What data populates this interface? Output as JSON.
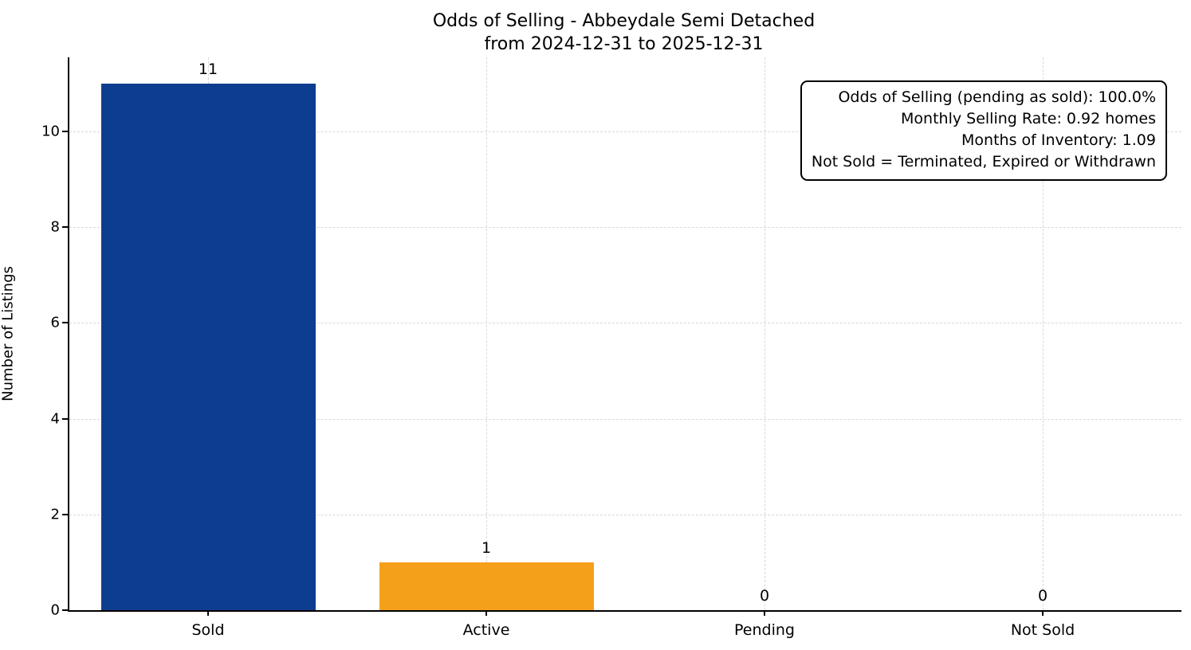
{
  "title": {
    "line1": "Odds of Selling - Abbeydale Semi Detached",
    "line2": "from 2024-12-31 to 2025-12-31"
  },
  "chart_data": {
    "type": "bar",
    "title": "Odds of Selling - Abbeydale Semi Detached\nfrom 2024-12-31 to 2025-12-31",
    "categories": [
      "Sold",
      "Active",
      "Pending",
      "Not Sold"
    ],
    "values": [
      11,
      1,
      0,
      0
    ],
    "value_labels": [
      "11",
      "1",
      "0",
      "0"
    ],
    "bar_colors": [
      "#0d3d8f",
      "#f5a01b",
      "#0d3d8f",
      "#0d3d8f"
    ],
    "xlabel": "",
    "ylabel": "Number of Listings",
    "ylim": [
      0,
      11.55
    ],
    "yticks": [
      0,
      2,
      4,
      6,
      8,
      10
    ],
    "grid": "dashed, both axes",
    "legend": "none",
    "annotation": {
      "lines": [
        "Odds of Selling (pending as sold): 100.0%",
        "Monthly Selling Rate: 0.92 homes",
        "Months of Inventory: 1.09",
        "Not Sold = Terminated, Expired or Withdrawn"
      ]
    }
  },
  "colors": {
    "sold_bar": "#0d3d8f",
    "active_bar": "#f5a01b",
    "grid": "#d9d9d9",
    "axis": "#000000",
    "background": "#ffffff"
  }
}
